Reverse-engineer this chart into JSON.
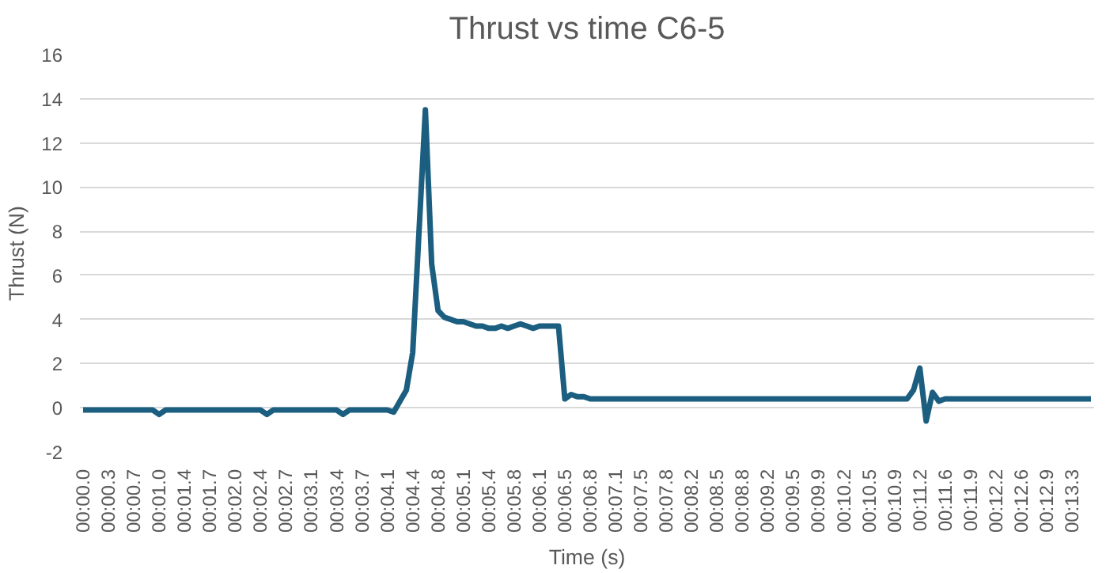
{
  "chart_data": {
    "type": "line",
    "title": "Thrust vs time C6-5",
    "xlabel": "Time (s)",
    "ylabel": "Thrust (N)",
    "grid": "y",
    "line_style": "solid",
    "marker": "none",
    "ylim": [
      -2,
      16
    ],
    "yticks": [
      -2,
      0,
      2,
      4,
      6,
      8,
      10,
      12,
      14,
      16
    ],
    "categories": [
      "00:00.0",
      null,
      null,
      null,
      "00:00.3",
      null,
      null,
      null,
      "00:00.7",
      null,
      null,
      null,
      "00:01.0",
      null,
      null,
      null,
      "00:01.4",
      null,
      null,
      null,
      "00:01.7",
      null,
      null,
      null,
      "00:02.0",
      null,
      null,
      null,
      "00:02.4",
      null,
      null,
      null,
      "00:02.7",
      null,
      null,
      null,
      "00:03.1",
      null,
      null,
      null,
      "00:03.4",
      null,
      null,
      null,
      "00:03.7",
      null,
      null,
      null,
      "00:04.1",
      null,
      null,
      null,
      "00:04.4",
      null,
      null,
      null,
      "00:04.8",
      null,
      null,
      null,
      "00:05.1",
      null,
      null,
      null,
      "00:05.4",
      null,
      null,
      null,
      "00:05.8",
      null,
      null,
      null,
      "00:06.1",
      null,
      null,
      null,
      "00:06.5",
      null,
      null,
      null,
      "00:06.8",
      null,
      null,
      null,
      "00:07.1",
      null,
      null,
      null,
      "00:07.5",
      null,
      null,
      null,
      "00:07.8",
      null,
      null,
      null,
      "00:08.2",
      null,
      null,
      null,
      "00:08.5",
      null,
      null,
      null,
      "00:08.8",
      null,
      null,
      null,
      "00:09.2",
      null,
      null,
      null,
      "00:09.5",
      null,
      null,
      null,
      "00:09.9",
      null,
      null,
      null,
      "00:10.2",
      null,
      null,
      null,
      "00:10.5",
      null,
      null,
      null,
      "00:10.9",
      null,
      null,
      null,
      "00:11.2",
      null,
      null,
      null,
      "00:11.6",
      null,
      null,
      null,
      "00:11.9",
      null,
      null,
      null,
      "00:12.2",
      null,
      null,
      null,
      "00:12.6",
      null,
      null,
      null,
      "00:12.9",
      null,
      null,
      null,
      "00:13.3",
      null,
      null,
      null
    ],
    "series": [
      {
        "color": "#1b5e80",
        "values": [
          -0.1,
          -0.1,
          -0.1,
          -0.1,
          -0.1,
          -0.1,
          -0.1,
          -0.1,
          -0.1,
          -0.1,
          -0.1,
          -0.1,
          -0.3,
          -0.1,
          -0.1,
          -0.1,
          -0.1,
          -0.1,
          -0.1,
          -0.1,
          -0.1,
          -0.1,
          -0.1,
          -0.1,
          -0.1,
          -0.1,
          -0.1,
          -0.1,
          -0.1,
          -0.3,
          -0.1,
          -0.1,
          -0.1,
          -0.1,
          -0.1,
          -0.1,
          -0.1,
          -0.1,
          -0.1,
          -0.1,
          -0.1,
          -0.3,
          -0.1,
          -0.1,
          -0.1,
          -0.1,
          -0.1,
          -0.1,
          -0.1,
          -0.2,
          0.3,
          0.8,
          2.5,
          8,
          13.5,
          6.5,
          4.4,
          4.1,
          4.0,
          3.9,
          3.9,
          3.8,
          3.7,
          3.7,
          3.6,
          3.6,
          3.7,
          3.6,
          3.7,
          3.8,
          3.7,
          3.6,
          3.7,
          3.7,
          3.7,
          3.7,
          0.4,
          0.6,
          0.5,
          0.5,
          0.4,
          0.4,
          0.4,
          0.4,
          0.4,
          0.4,
          0.4,
          0.4,
          0.4,
          0.4,
          0.4,
          0.4,
          0.4,
          0.4,
          0.4,
          0.4,
          0.4,
          0.4,
          0.4,
          0.4,
          0.4,
          0.4,
          0.4,
          0.4,
          0.4,
          0.4,
          0.4,
          0.4,
          0.4,
          0.4,
          0.4,
          0.4,
          0.4,
          0.4,
          0.4,
          0.4,
          0.4,
          0.4,
          0.4,
          0.4,
          0.4,
          0.4,
          0.4,
          0.4,
          0.4,
          0.4,
          0.4,
          0.4,
          0.4,
          0.4,
          0.4,
          0.8,
          1.8,
          -0.6,
          0.7,
          0.3,
          0.4,
          0.4,
          0.4,
          0.4,
          0.4,
          0.4,
          0.4,
          0.4,
          0.4,
          0.4,
          0.4,
          0.4,
          0.4,
          0.4,
          0.4,
          0.4,
          0.4,
          0.4,
          0.4,
          0.4,
          0.4,
          0.4,
          0.4,
          0.4
        ]
      }
    ]
  }
}
